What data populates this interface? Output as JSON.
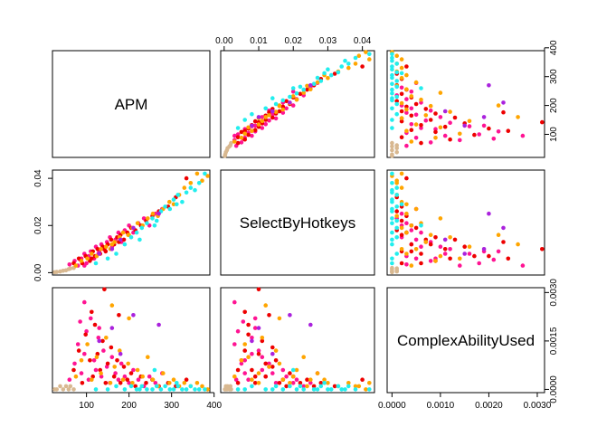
{
  "chart_data": {
    "type": "scatter",
    "subtype": "pairs-matrix",
    "variables": [
      {
        "name": "APM",
        "range": [
          20,
          390
        ]
      },
      {
        "name": "SelectByHotkeys",
        "range": [
          -0.001,
          0.0435
        ]
      },
      {
        "name": "ComplexAbilityUsed",
        "range": [
          -0.0001,
          0.00315
        ]
      }
    ],
    "diagonal_labels": [
      "APM",
      "SelectByHotkeys",
      "ComplexAbilityUsed"
    ],
    "axes": {
      "top": {
        "variable": 1,
        "ticks": [
          0.0,
          0.01,
          0.02,
          0.03,
          0.04
        ],
        "labels": [
          "0.00",
          "0.01",
          "0.02",
          "0.03",
          "0.04"
        ]
      },
      "bottom": {
        "variable": 0,
        "ticks": [
          100,
          200,
          300,
          400
        ],
        "labels": [
          "100",
          "200",
          "300",
          "400"
        ]
      },
      "bottom_right": {
        "variable": 2,
        "ticks": [
          0.0,
          0.001,
          0.002,
          0.003
        ],
        "labels": [
          "0.0000",
          "0.0010",
          "0.0020",
          "0.0030"
        ]
      },
      "left": {
        "variable": 1,
        "ticks": [
          0.0,
          0.02,
          0.04
        ],
        "labels": [
          "0.00",
          "0.02",
          "0.04"
        ]
      },
      "right_top": {
        "variable": 0,
        "ticks": [
          100,
          200,
          300,
          400
        ],
        "labels": [
          "100",
          "200",
          "300",
          "400"
        ]
      },
      "right_bottom": {
        "variable": 2,
        "ticks": [
          0.0,
          0.0015,
          0.003
        ],
        "labels": [
          "0.0000",
          "0.0015",
          "0.0030"
        ]
      }
    },
    "group_colors": [
      "#d8b890",
      "#ff1493",
      "#ee0000",
      "#ffa500",
      "#22eeee",
      "#aa22dd"
    ],
    "points": [
      [
        25,
        0.0002,
        0.0,
        0
      ],
      [
        30,
        0.0003,
        0.0,
        0
      ],
      [
        38,
        0.0005,
        0.0001,
        0
      ],
      [
        45,
        0.0008,
        0.0,
        0
      ],
      [
        52,
        0.001,
        0.0001,
        0
      ],
      [
        58,
        0.0015,
        0.0,
        0
      ],
      [
        62,
        0.0018,
        0.0001,
        0
      ],
      [
        70,
        0.002,
        0.0,
        0
      ],
      [
        60,
        0.0035,
        0.0003,
        1
      ],
      [
        72,
        0.005,
        0.0008,
        1
      ],
      [
        80,
        0.003,
        0.0014,
        1
      ],
      [
        88,
        0.006,
        0.0005,
        1
      ],
      [
        95,
        0.008,
        0.0011,
        1
      ],
      [
        100,
        0.004,
        0.0018,
        1
      ],
      [
        105,
        0.007,
        0.0003,
        1
      ],
      [
        110,
        0.009,
        0.0022,
        1
      ],
      [
        118,
        0.006,
        0.0009,
        1
      ],
      [
        122,
        0.011,
        0.0006,
        1
      ],
      [
        128,
        0.008,
        0.0016,
        1
      ],
      [
        135,
        0.012,
        0.0004,
        1
      ],
      [
        140,
        0.01,
        0.0012,
        1
      ],
      [
        148,
        0.013,
        0.0007,
        1
      ],
      [
        155,
        0.015,
        0.0002,
        1
      ],
      [
        160,
        0.011,
        0.001,
        1
      ],
      [
        168,
        0.014,
        0.0005,
        1
      ],
      [
        175,
        0.017,
        0.0003,
        1
      ],
      [
        182,
        0.013,
        0.0008,
        1
      ],
      [
        190,
        0.018,
        0.0004,
        1
      ],
      [
        200,
        0.02,
        0.0002,
        1
      ],
      [
        210,
        0.017,
        0.0006,
        1
      ],
      [
        222,
        0.021,
        0.0003,
        1
      ],
      [
        235,
        0.023,
        0.0001,
        1
      ],
      [
        248,
        0.02,
        0.0004,
        1
      ],
      [
        262,
        0.025,
        0.0002,
        1
      ],
      [
        278,
        0.027,
        0.0005,
        1
      ],
      [
        95,
        0.003,
        0.0027,
        1
      ],
      [
        85,
        0.0055,
        0.0021,
        1
      ],
      [
        130,
        0.009,
        0.0019,
        1
      ],
      [
        70,
        0.004,
        0.0006,
        2
      ],
      [
        82,
        0.006,
        0.0012,
        2
      ],
      [
        90,
        0.004,
        0.0002,
        2
      ],
      [
        98,
        0.007,
        0.0017,
        2
      ],
      [
        108,
        0.005,
        0.0009,
        2
      ],
      [
        115,
        0.009,
        0.0004,
        2
      ],
      [
        120,
        0.007,
        0.002,
        2
      ],
      [
        126,
        0.01,
        0.0011,
        2
      ],
      [
        132,
        0.008,
        0.0006,
        2
      ],
      [
        138,
        0.011,
        0.0015,
        2
      ],
      [
        145,
        0.009,
        0.0002,
        2
      ],
      [
        150,
        0.012,
        0.0008,
        2
      ],
      [
        158,
        0.014,
        0.0013,
        2
      ],
      [
        165,
        0.012,
        0.0004,
        2
      ],
      [
        172,
        0.015,
        0.0009,
        2
      ],
      [
        180,
        0.016,
        0.0002,
        2
      ],
      [
        188,
        0.014,
        0.0007,
        2
      ],
      [
        196,
        0.017,
        0.0003,
        2
      ],
      [
        205,
        0.019,
        0.0005,
        2
      ],
      [
        215,
        0.018,
        0.0001,
        2
      ],
      [
        228,
        0.02,
        0.0004,
        2
      ],
      [
        240,
        0.022,
        0.0002,
        2
      ],
      [
        255,
        0.024,
        0.0003,
        2
      ],
      [
        270,
        0.026,
        0.0001,
        2
      ],
      [
        292,
        0.028,
        0.0002,
        2
      ],
      [
        310,
        0.032,
        0.0001,
        2
      ],
      [
        335,
        0.04,
        0.0003,
        2
      ],
      [
        142,
        0.01,
        0.0031,
        2
      ],
      [
        112,
        0.006,
        0.0024,
        2
      ],
      [
        176,
        0.013,
        0.0023,
        2
      ],
      [
        75,
        0.003,
        0.0004,
        3
      ],
      [
        88,
        0.005,
        0.0009,
        3
      ],
      [
        102,
        0.006,
        0.0014,
        3
      ],
      [
        112,
        0.008,
        0.0003,
        3
      ],
      [
        124,
        0.007,
        0.001,
        3
      ],
      [
        134,
        0.01,
        0.0005,
        3
      ],
      [
        146,
        0.011,
        0.0016,
        3
      ],
      [
        156,
        0.01,
        0.0002,
        3
      ],
      [
        166,
        0.013,
        0.0007,
        3
      ],
      [
        178,
        0.015,
        0.0012,
        3
      ],
      [
        186,
        0.017,
        0.0003,
        3
      ],
      [
        198,
        0.016,
        0.0008,
        3
      ],
      [
        208,
        0.019,
        0.0002,
        3
      ],
      [
        220,
        0.021,
        0.0006,
        3
      ],
      [
        232,
        0.02,
        0.0004,
        3
      ],
      [
        244,
        0.023,
        0.001,
        3
      ],
      [
        256,
        0.025,
        0.0003,
        3
      ],
      [
        268,
        0.024,
        0.0001,
        3
      ],
      [
        280,
        0.027,
        0.0005,
        3
      ],
      [
        295,
        0.03,
        0.0002,
        3
      ],
      [
        305,
        0.029,
        0.0003,
        3
      ],
      [
        318,
        0.033,
        0.0001,
        3
      ],
      [
        330,
        0.036,
        0.0002,
        3
      ],
      [
        345,
        0.038,
        0.0001,
        3
      ],
      [
        360,
        0.042,
        0.0002,
        3
      ],
      [
        372,
        0.039,
        0.0001,
        3
      ],
      [
        385,
        0.041,
        0.0,
        3
      ],
      [
        200,
        0.016,
        0.0022,
        3
      ],
      [
        160,
        0.012,
        0.0026,
        3
      ],
      [
        150,
        0.006,
        0.0,
        4
      ],
      [
        170,
        0.008,
        0.0001,
        4
      ],
      [
        190,
        0.012,
        0.0,
        4
      ],
      [
        205,
        0.015,
        0.0001,
        4
      ],
      [
        218,
        0.017,
        0.0,
        4
      ],
      [
        230,
        0.019,
        0.0001,
        4
      ],
      [
        242,
        0.021,
        0.0,
        4
      ],
      [
        255,
        0.023,
        0.0,
        4
      ],
      [
        265,
        0.022,
        0.0001,
        4
      ],
      [
        275,
        0.026,
        0.0,
        4
      ],
      [
        285,
        0.028,
        0.0001,
        4
      ],
      [
        296,
        0.027,
        0.0,
        4
      ],
      [
        305,
        0.031,
        0.0,
        4
      ],
      [
        315,
        0.033,
        0.0001,
        4
      ],
      [
        325,
        0.03,
        0.0,
        4
      ],
      [
        335,
        0.034,
        0.0,
        4
      ],
      [
        345,
        0.036,
        0.0001,
        4
      ],
      [
        355,
        0.035,
        0.0,
        4
      ],
      [
        365,
        0.038,
        0.0,
        4
      ],
      [
        378,
        0.042,
        0.0,
        4
      ],
      [
        122,
        0.004,
        0.0,
        4
      ],
      [
        260,
        0.02,
        0.0006,
        4
      ],
      [
        312,
        0.029,
        0.0002,
        4
      ],
      [
        225,
        0.014,
        0.0,
        4
      ],
      [
        130,
        0.008,
        0.0015,
        5
      ],
      [
        160,
        0.01,
        0.0019,
        5
      ],
      [
        210,
        0.019,
        0.0023,
        5
      ],
      [
        270,
        0.025,
        0.002,
        5
      ],
      [
        180,
        0.014,
        0.0011,
        5
      ]
    ]
  }
}
